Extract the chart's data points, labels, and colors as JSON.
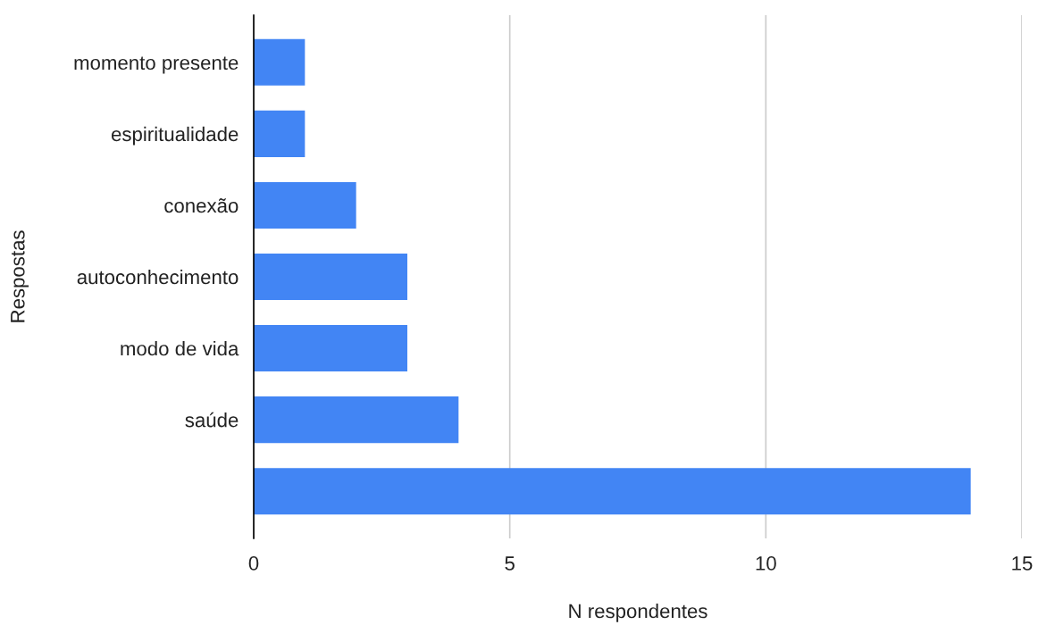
{
  "chart_data": {
    "type": "bar",
    "orientation": "horizontal",
    "categories": [
      "momento presente",
      "espiritualidade",
      "conexão",
      "autoconhecimento",
      "modo de vida",
      "saúde",
      null
    ],
    "values": [
      1,
      1,
      2,
      3,
      3,
      4,
      14
    ],
    "color": "#4285f4",
    "xlabel": "N respondentes",
    "ylabel": "Respostas",
    "xlim": [
      0,
      15
    ],
    "xticks": [
      0,
      5,
      10,
      15
    ],
    "grid": "x",
    "legend": false
  }
}
